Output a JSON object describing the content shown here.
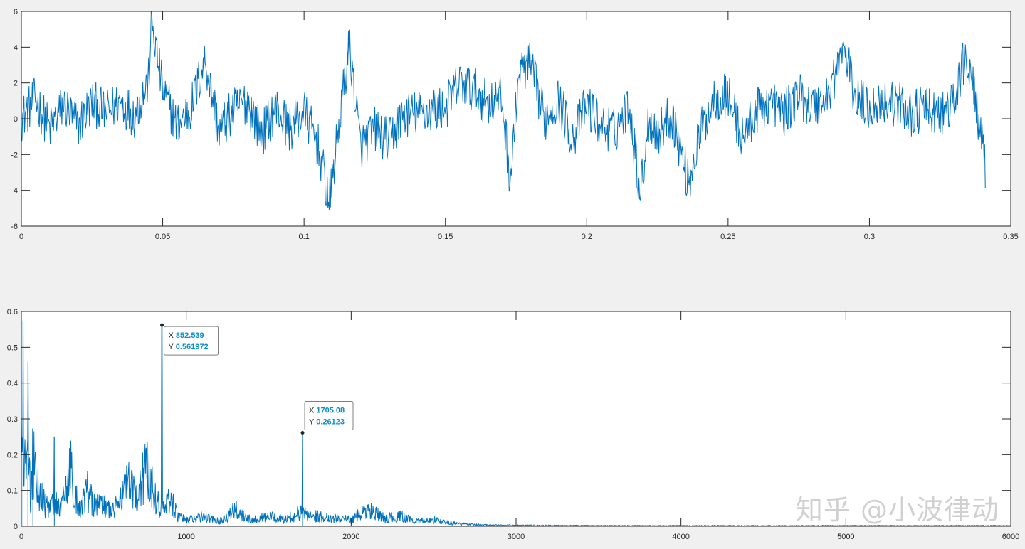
{
  "watermark": "知乎 @小波律动",
  "colors": {
    "background": "#f0f0f0",
    "axes_face": "#ffffff",
    "axes_edge": "#262626",
    "line": "#0072bd",
    "datatip_value": "#0a8fc6"
  },
  "chart_data": [
    {
      "type": "line",
      "title": "",
      "xlabel": "",
      "ylabel": "",
      "xlim": [
        0,
        0.35
      ],
      "ylim": [
        -6,
        6
      ],
      "x_ticks": [
        "0",
        "0.05",
        "0.1",
        "0.15",
        "0.2",
        "0.25",
        "0.3",
        "0.35"
      ],
      "y_ticks": [
        "-6",
        "-4",
        "-2",
        "0",
        "2",
        "4",
        "6"
      ],
      "grid": false,
      "x_range": [
        0,
        0.341
      ],
      "series": [
        {
          "color": "#0072bd",
          "points": [
            [
              0.0,
              0.0
            ],
            [
              0.005,
              1.1
            ],
            [
              0.01,
              -0.6
            ],
            [
              0.015,
              0.8
            ],
            [
              0.02,
              -0.4
            ],
            [
              0.025,
              0.9
            ],
            [
              0.03,
              0.3
            ],
            [
              0.035,
              1.0
            ],
            [
              0.04,
              0.2
            ],
            [
              0.045,
              2.1
            ],
            [
              0.046,
              5.5
            ],
            [
              0.05,
              1.6
            ],
            [
              0.055,
              -0.4
            ],
            [
              0.06,
              0.6
            ],
            [
              0.065,
              3.3
            ],
            [
              0.07,
              -0.7
            ],
            [
              0.075,
              0.5
            ],
            [
              0.08,
              1.0
            ],
            [
              0.085,
              -0.9
            ],
            [
              0.09,
              0.6
            ],
            [
              0.095,
              -0.6
            ],
            [
              0.1,
              0.4
            ],
            [
              0.105,
              -1.5
            ],
            [
              0.109,
              -4.8
            ],
            [
              0.112,
              -0.8
            ],
            [
              0.116,
              4.1
            ],
            [
              0.12,
              -1.6
            ],
            [
              0.125,
              -0.6
            ],
            [
              0.13,
              -1.3
            ],
            [
              0.135,
              0.2
            ],
            [
              0.14,
              0.3
            ],
            [
              0.145,
              0.5
            ],
            [
              0.15,
              0.6
            ],
            [
              0.155,
              2.0
            ],
            [
              0.16,
              1.6
            ],
            [
              0.165,
              0.9
            ],
            [
              0.17,
              1.1
            ],
            [
              0.173,
              -3.5
            ],
            [
              0.176,
              2.6
            ],
            [
              0.18,
              3.0
            ],
            [
              0.185,
              0.0
            ],
            [
              0.19,
              1.1
            ],
            [
              0.195,
              -1.1
            ],
            [
              0.2,
              0.8
            ],
            [
              0.205,
              -0.4
            ],
            [
              0.21,
              -0.7
            ],
            [
              0.215,
              0.9
            ],
            [
              0.219,
              -4.2
            ],
            [
              0.222,
              0.1
            ],
            [
              0.225,
              -0.9
            ],
            [
              0.23,
              0.3
            ],
            [
              0.236,
              -3.6
            ],
            [
              0.24,
              -0.9
            ],
            [
              0.245,
              1.1
            ],
            [
              0.25,
              1.3
            ],
            [
              0.255,
              -1.1
            ],
            [
              0.26,
              0.4
            ],
            [
              0.265,
              1.0
            ],
            [
              0.27,
              0.3
            ],
            [
              0.275,
              1.4
            ],
            [
              0.28,
              0.6
            ],
            [
              0.285,
              1.2
            ],
            [
              0.291,
              4.0
            ],
            [
              0.295,
              1.2
            ],
            [
              0.3,
              0.6
            ],
            [
              0.305,
              1.0
            ],
            [
              0.31,
              0.8
            ],
            [
              0.315,
              0.3
            ],
            [
              0.32,
              0.6
            ],
            [
              0.325,
              0.1
            ],
            [
              0.33,
              0.9
            ],
            [
              0.334,
              3.6
            ],
            [
              0.338,
              0.7
            ],
            [
              0.341,
              -3.0
            ]
          ]
        }
      ]
    },
    {
      "type": "line",
      "title": "",
      "xlabel": "",
      "ylabel": "",
      "xlim": [
        0,
        6000
      ],
      "ylim": [
        0,
        0.6
      ],
      "x_ticks": [
        "0",
        "1000",
        "2000",
        "3000",
        "4000",
        "5000",
        "6000"
      ],
      "y_ticks": [
        "0",
        "0.1",
        "0.2",
        "0.3",
        "0.4",
        "0.5",
        "0.6"
      ],
      "grid": false,
      "series": [
        {
          "color": "#0072bd",
          "points": [
            [
              0,
              0.31
            ],
            [
              10,
              0.575
            ],
            [
              25,
              0.12
            ],
            [
              40,
              0.46
            ],
            [
              55,
              0.05
            ],
            [
              70,
              0.24
            ],
            [
              100,
              0.12
            ],
            [
              150,
              0.06
            ],
            [
              200,
              0.25
            ],
            [
              250,
              0.07
            ],
            [
              300,
              0.17
            ],
            [
              350,
              0.05
            ],
            [
              400,
              0.11
            ],
            [
              450,
              0.06
            ],
            [
              500,
              0.07
            ],
            [
              550,
              0.04
            ],
            [
              600,
              0.09
            ],
            [
              650,
              0.13
            ],
            [
              700,
              0.08
            ],
            [
              750,
              0.19
            ],
            [
              800,
              0.12
            ],
            [
              840,
              0.06
            ],
            [
              852.539,
              0.561972
            ],
            [
              865,
              0.05
            ],
            [
              900,
              0.09
            ],
            [
              950,
              0.03
            ],
            [
              1000,
              0.02
            ],
            [
              1100,
              0.03
            ],
            [
              1200,
              0.015
            ],
            [
              1300,
              0.05
            ],
            [
              1400,
              0.02
            ],
            [
              1500,
              0.03
            ],
            [
              1600,
              0.02
            ],
            [
              1680,
              0.04
            ],
            [
              1705.08,
              0.26123
            ],
            [
              1720,
              0.04
            ],
            [
              1800,
              0.03
            ],
            [
              1900,
              0.025
            ],
            [
              2000,
              0.02
            ],
            [
              2100,
              0.05
            ],
            [
              2200,
              0.025
            ],
            [
              2300,
              0.03
            ],
            [
              2400,
              0.015
            ],
            [
              2500,
              0.02
            ],
            [
              2600,
              0.01
            ],
            [
              2700,
              0.006
            ],
            [
              2800,
              0.004
            ],
            [
              3000,
              0.003
            ],
            [
              3500,
              0.002
            ],
            [
              4000,
              0.002
            ],
            [
              4500,
              0.002
            ],
            [
              5000,
              0.002
            ],
            [
              5500,
              0.002
            ],
            [
              6000,
              0.002
            ]
          ]
        }
      ],
      "annotations": [
        {
          "label_x": "X",
          "label_y": "Y",
          "x": 852.539,
          "y": 0.561972,
          "x_text": "852.539",
          "y_text": "0.561972",
          "placement": "right-below"
        },
        {
          "label_x": "X",
          "label_y": "Y",
          "x": 1705.08,
          "y": 0.26123,
          "x_text": "1705.08",
          "y_text": "0.26123",
          "placement": "right-above"
        }
      ]
    }
  ]
}
